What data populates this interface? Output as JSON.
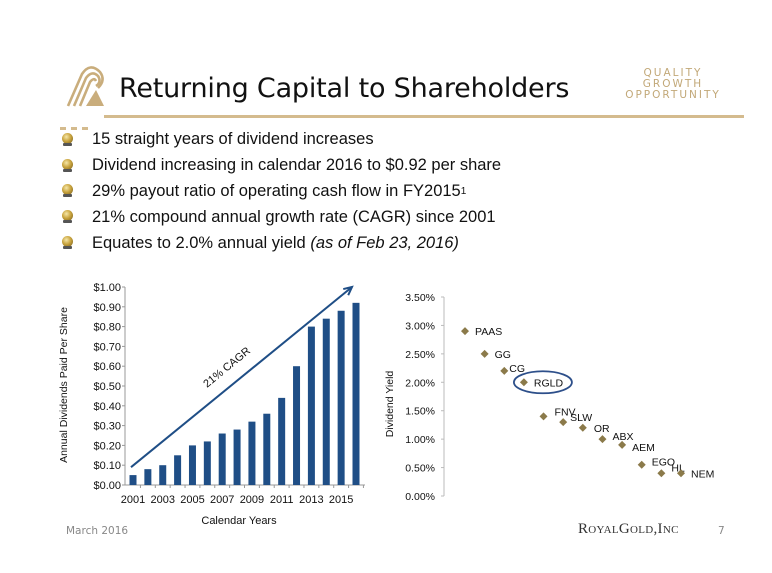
{
  "header": {
    "title": "Returning Capital to Shareholders",
    "tagline": [
      "QUALITY",
      "GROWTH",
      "OPPORTUNITY"
    ],
    "brand_color": "#c2a878"
  },
  "bullets": [
    {
      "text": "15 straight years of dividend increases"
    },
    {
      "text": "Dividend increasing in calendar 2016 to $0.92 per share"
    },
    {
      "text": "29% payout ratio of operating cash flow in FY2015",
      "sup": "1"
    },
    {
      "text": "21% compound annual growth rate (CAGR) since 2001"
    },
    {
      "text": "Equates to 2.0% annual yield ",
      "italic": "(as of Feb 23, 2016)"
    }
  ],
  "chart_data": [
    {
      "type": "bar",
      "title": "",
      "xlabel": "Calendar Years",
      "ylabel": "Annual Dividends Paid Per Share",
      "categories": [
        "2001",
        "2002",
        "2003",
        "2004",
        "2005",
        "2006",
        "2007",
        "2008",
        "2009",
        "2010",
        "2011",
        "2012",
        "2013",
        "2014",
        "2015",
        "2016"
      ],
      "values": [
        0.05,
        0.08,
        0.1,
        0.15,
        0.2,
        0.22,
        0.26,
        0.28,
        0.32,
        0.36,
        0.44,
        0.6,
        0.8,
        0.84,
        0.88,
        0.92
      ],
      "x_tick_labels": [
        "2001",
        "2003",
        "2005",
        "2007",
        "2009",
        "2011",
        "2013",
        "2015"
      ],
      "y_tick_labels": [
        "$0.00",
        "$0.10",
        "$0.20",
        "$0.30",
        "$0.40",
        "$0.50",
        "$0.60",
        "$0.70",
        "$0.80",
        "$0.90",
        "$1.00"
      ],
      "ylim": [
        0,
        1.0
      ],
      "bar_color": "#1f4e86",
      "annotation": {
        "text": "21% CAGR",
        "type": "arrow",
        "from": {
          "x": "2001",
          "y": 0.09
        },
        "to": {
          "x": "2016",
          "y": 1.0
        }
      },
      "grid": false
    },
    {
      "type": "scatter",
      "title": "",
      "xlabel": "",
      "ylabel": "Dividend Yield",
      "points": [
        {
          "label": "PAAS",
          "y": 2.9
        },
        {
          "label": "GG",
          "y": 2.5
        },
        {
          "label": "CG",
          "y": 2.2
        },
        {
          "label": "RGLD",
          "y": 2.0,
          "highlight": true
        },
        {
          "label": "FNV",
          "y": 1.4
        },
        {
          "label": "SLW",
          "y": 1.3
        },
        {
          "label": "OR",
          "y": 1.2
        },
        {
          "label": "ABX",
          "y": 1.0
        },
        {
          "label": "AEM",
          "y": 0.9
        },
        {
          "label": "EGO",
          "y": 0.55
        },
        {
          "label": "HL",
          "y": 0.4
        },
        {
          "label": "NEM",
          "y": 0.4
        }
      ],
      "y_tick_labels": [
        "0.00%",
        "0.50%",
        "1.00%",
        "1.50%",
        "2.00%",
        "2.50%",
        "3.00%",
        "3.50%"
      ],
      "ylim": [
        0,
        3.5
      ],
      "point_color": "#8b7a4a",
      "highlight_color": "#2d4f8a",
      "grid": false
    }
  ],
  "footer": {
    "date": "March 2016",
    "brand": "RoyalGold,Inc",
    "page": "7"
  }
}
